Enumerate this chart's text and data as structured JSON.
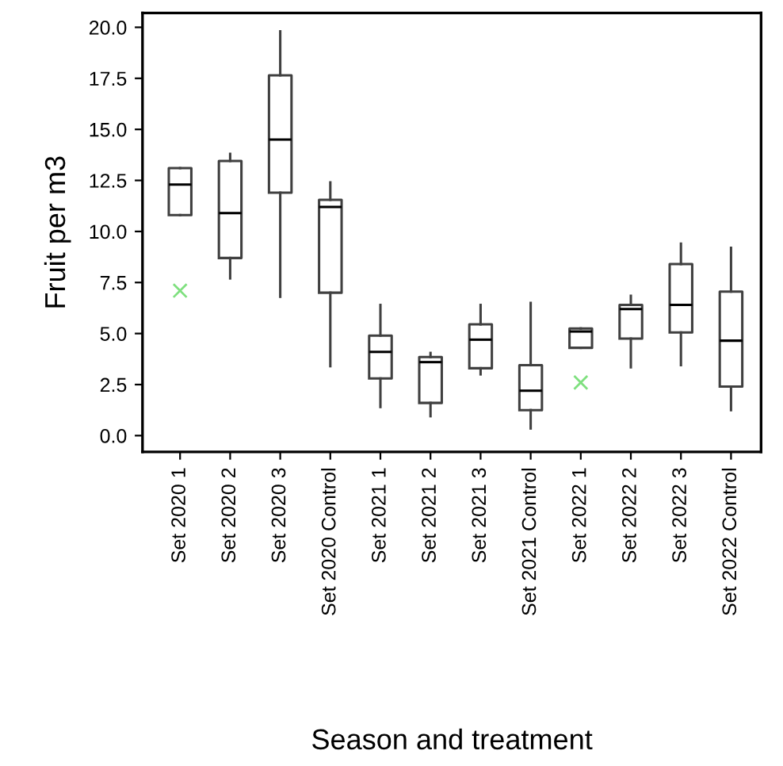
{
  "chart_data": {
    "type": "box",
    "xlabel": "Season and treatment",
    "ylabel": "Fruit per m3",
    "categories": [
      "Set 2020 1",
      "Set 2020 2",
      "Set 2020 3",
      "Set 2020 Control",
      "Set 2021 1",
      "Set 2021 2",
      "Set 2021 3",
      "Set 2021 Control",
      "Set 2022 1",
      "Set 2022 2",
      "Set 2022 3",
      "Set 2022 Control"
    ],
    "boxes": [
      {
        "low": 10.8,
        "q1": 10.8,
        "median": 12.3,
        "q3": 13.1,
        "high": 13.1,
        "outliers": [
          7.1
        ]
      },
      {
        "low": 7.7,
        "q1": 8.7,
        "median": 10.9,
        "q3": 13.45,
        "high": 13.8
      },
      {
        "low": 6.8,
        "q1": 11.9,
        "median": 14.5,
        "q3": 17.65,
        "high": 19.8
      },
      {
        "low": 3.4,
        "q1": 7.0,
        "median": 11.2,
        "q3": 11.55,
        "high": 12.4
      },
      {
        "low": 1.4,
        "q1": 2.8,
        "median": 4.1,
        "q3": 4.9,
        "high": 6.4
      },
      {
        "low": 0.95,
        "q1": 1.6,
        "median": 3.6,
        "q3": 3.85,
        "high": 4.05
      },
      {
        "low": 3.0,
        "q1": 3.3,
        "median": 4.7,
        "q3": 5.45,
        "high": 6.4
      },
      {
        "low": 0.35,
        "q1": 1.25,
        "median": 2.2,
        "q3": 3.45,
        "high": 6.5
      },
      {
        "low": 4.3,
        "q1": 4.3,
        "median": 5.1,
        "q3": 5.25,
        "high": 5.25,
        "outliers": [
          2.6
        ]
      },
      {
        "low": 3.35,
        "q1": 4.75,
        "median": 6.2,
        "q3": 6.4,
        "high": 6.85
      },
      {
        "low": 3.45,
        "q1": 5.05,
        "median": 6.4,
        "q3": 8.4,
        "high": 9.4
      },
      {
        "low": 1.25,
        "q1": 2.4,
        "median": 4.65,
        "q3": 7.05,
        "high": 9.2
      }
    ],
    "color": "#404040",
    "ylim": [
      -0.8,
      20.7
    ],
    "yticks": [
      {
        "value": 0,
        "label": "0.0"
      },
      {
        "value": 2.5,
        "label": "2.5"
      },
      {
        "value": 5,
        "label": "5.0"
      },
      {
        "value": 7.5,
        "label": "7.5"
      },
      {
        "value": 10,
        "label": "10.0"
      },
      {
        "value": 12.5,
        "label": "12.5"
      },
      {
        "value": 15,
        "label": "15.0"
      },
      {
        "value": 17.5,
        "label": "17.5"
      },
      {
        "value": 20,
        "label": "20.0"
      }
    ],
    "grid": false,
    "legend": false
  }
}
